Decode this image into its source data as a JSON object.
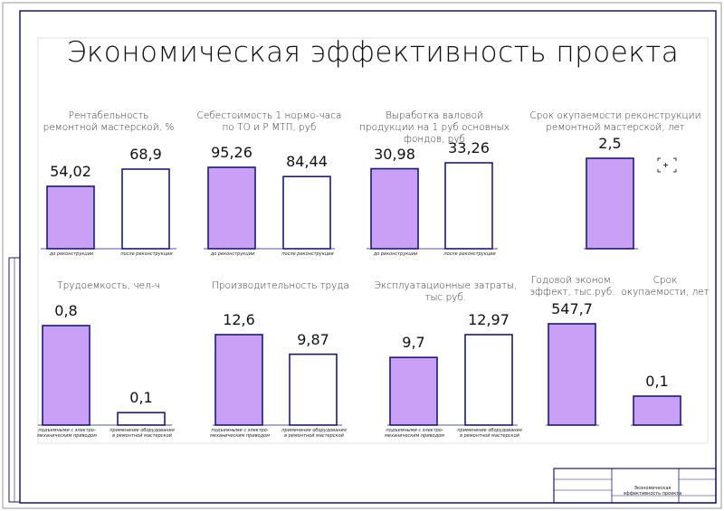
{
  "title": "Экономическая эффективность проекта",
  "stamp": {
    "sheet_title": "Экономическая эффективность проекта"
  },
  "chart_data": [
    {
      "type": "bar",
      "title": "Рентабельность ремонтной мастерской, %",
      "categories": [
        "до реконструкции",
        "после реконструкции"
      ],
      "values": [
        54.02,
        68.9
      ],
      "value_labels": [
        "54,02",
        "68,9"
      ],
      "colors": [
        "#c9a0f5",
        "#ffffff"
      ]
    },
    {
      "type": "bar",
      "title": "Себестоимость 1 нормо-часа по ТО и Р МТП, руб",
      "categories": [
        "до реконструкции",
        "после реконструкции"
      ],
      "values": [
        95.26,
        84.44
      ],
      "value_labels": [
        "95,26",
        "84,44"
      ],
      "colors": [
        "#c9a0f5",
        "#ffffff"
      ]
    },
    {
      "type": "bar",
      "title": "Выработка валовой продукции на 1 руб основных фондов, руб",
      "categories": [
        "до реконструкции",
        "после реконструкции"
      ],
      "values": [
        30.98,
        33.26
      ],
      "value_labels": [
        "30,98",
        "33,26"
      ],
      "colors": [
        "#c9a0f5",
        "#ffffff"
      ]
    },
    {
      "type": "bar",
      "title": "Срок окупаемости реконструкции ремонтной мастерской, лет",
      "categories": [
        null
      ],
      "values": [
        2.5
      ],
      "value_labels": [
        "2,5"
      ],
      "colors": [
        "#c9a0f5"
      ]
    },
    {
      "type": "bar",
      "title": "Трудоемкость, чел-ч",
      "categories": [
        "подъемными с электро-механическим приводом",
        "применение оборудования в ремонтной мастерской"
      ],
      "values": [
        0.8,
        0.1
      ],
      "value_labels": [
        "0,8",
        "0,1"
      ],
      "colors": [
        "#c9a0f5",
        "#ffffff"
      ]
    },
    {
      "type": "bar",
      "title": "Производительность труда",
      "categories": [
        "подъемными с электро-механическим приводом",
        "применение оборудования в ремонтной мастерской"
      ],
      "values": [
        12.6,
        9.87
      ],
      "value_labels": [
        "12,6",
        "9,87"
      ],
      "colors": [
        "#c9a0f5",
        "#ffffff"
      ]
    },
    {
      "type": "bar",
      "title": "Эксплуатационные затраты, тыс.руб.",
      "categories": [
        "подъемными с электро-механическим приводом",
        "применение оборудования в ремонтной мастерской"
      ],
      "values": [
        9.7,
        12.97
      ],
      "value_labels": [
        "9,7",
        "12,97"
      ],
      "colors": [
        "#c9a0f5",
        "#ffffff"
      ]
    },
    {
      "type": "bar",
      "title": "Годовой эконом. эффект, тыс.руб.",
      "categories": [
        null
      ],
      "values": [
        547.7
      ],
      "value_labels": [
        "547,7"
      ],
      "colors": [
        "#c9a0f5"
      ]
    },
    {
      "type": "bar",
      "title": "Срок окупаемости, лет",
      "categories": [
        null
      ],
      "values": [
        0.1
      ],
      "value_labels": [
        "0,1"
      ],
      "colors": [
        "#c9a0f5"
      ]
    }
  ]
}
